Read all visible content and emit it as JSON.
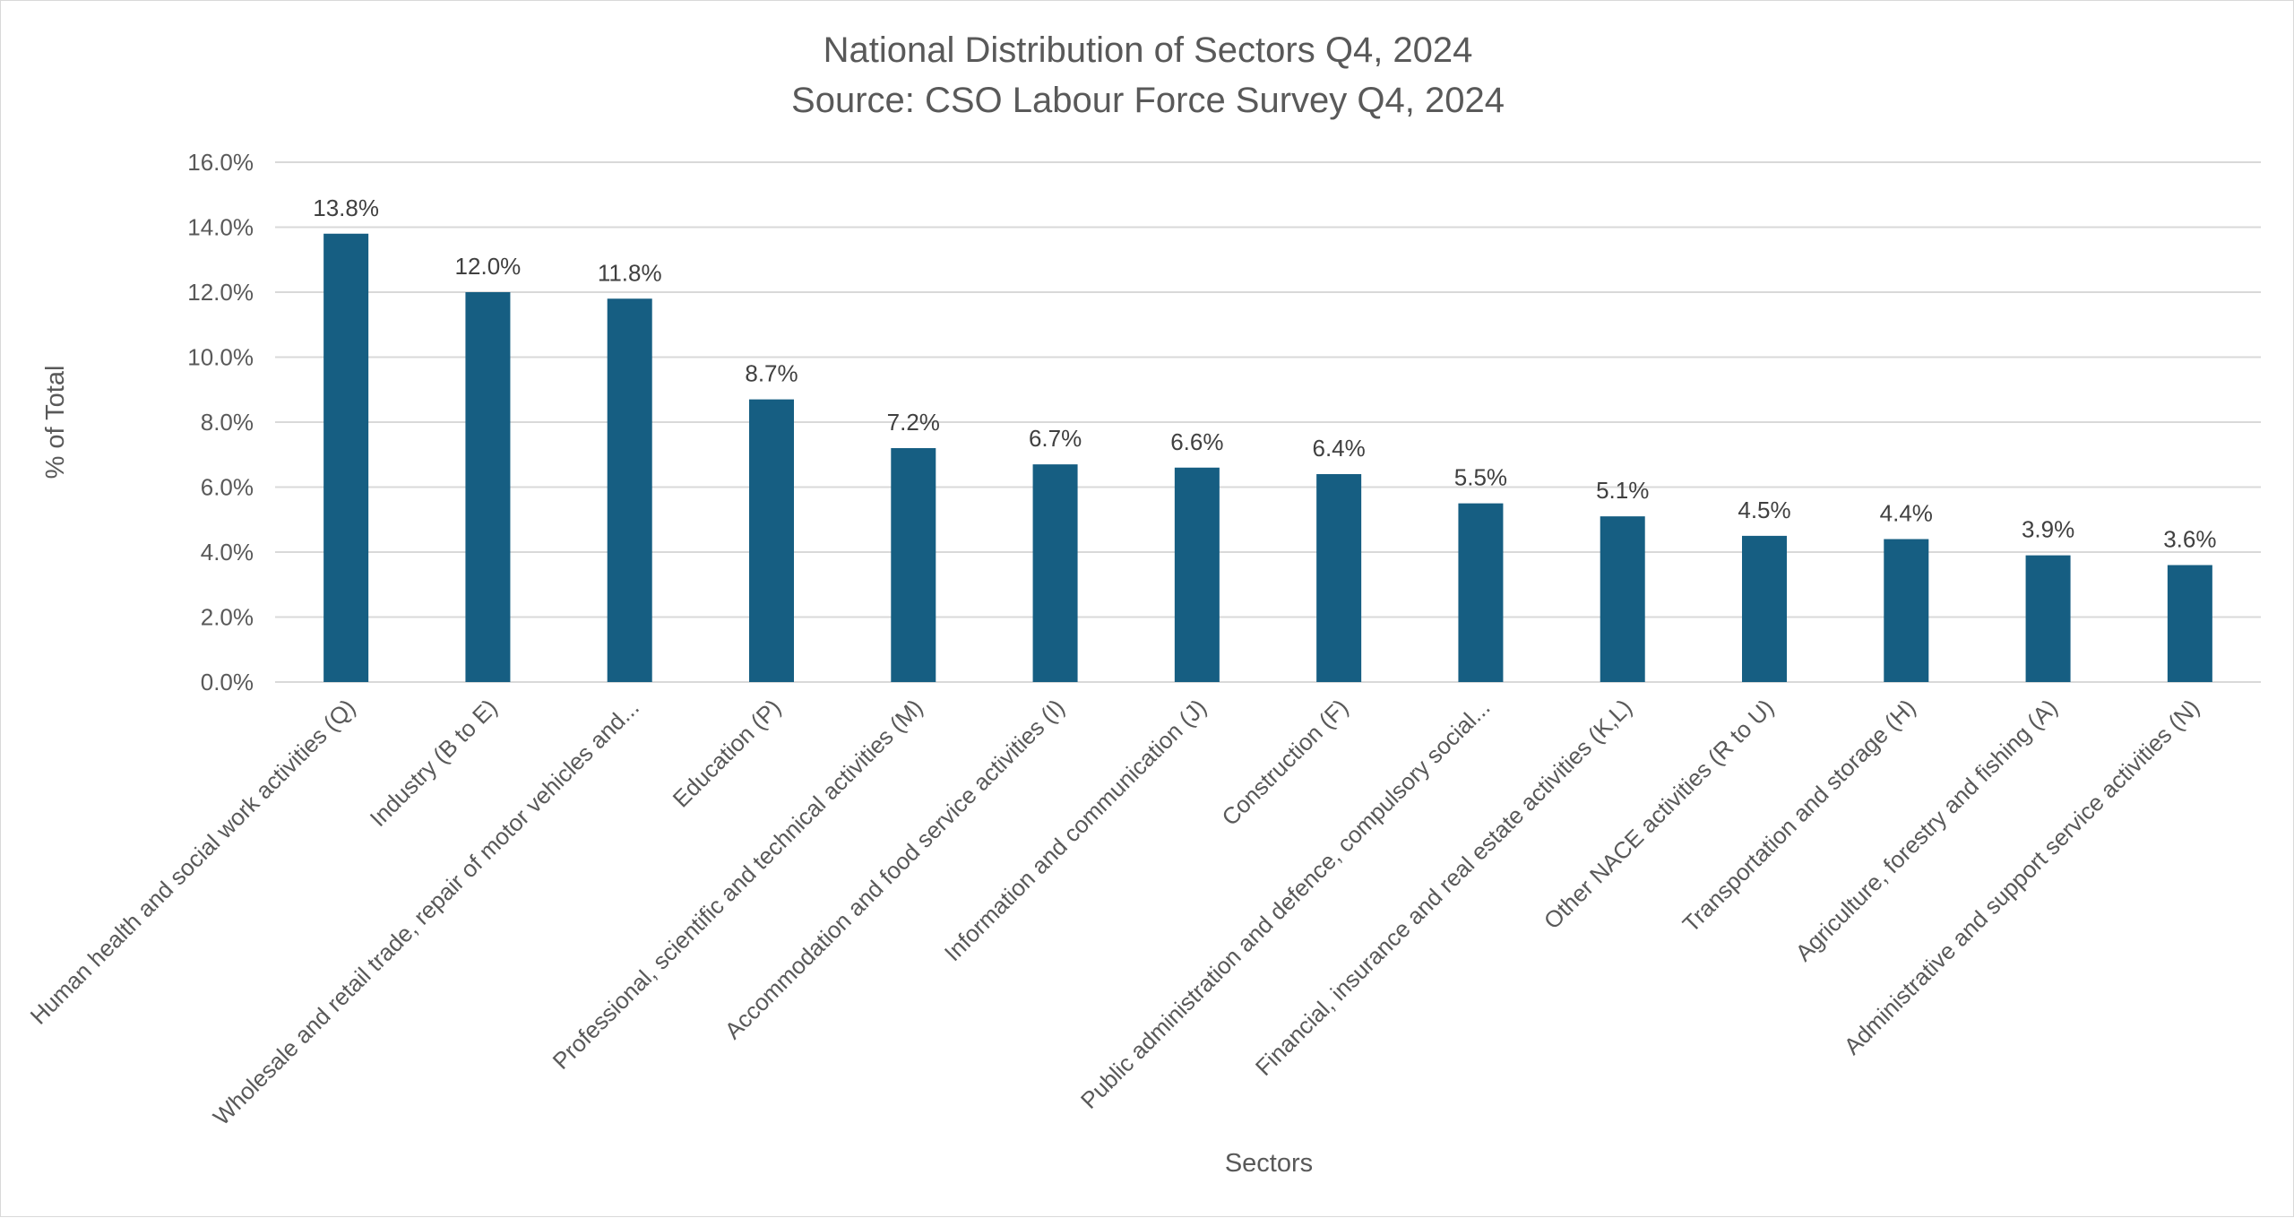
{
  "chart_data": {
    "type": "bar",
    "title": "National Distribution of Sectors Q4, 2024",
    "subtitle": "Source: CSO Labour Force Survey Q4, 2024",
    "xlabel": "Sectors",
    "ylabel": "% of Total",
    "ylim": [
      0,
      16
    ],
    "yticks": [
      "0.0%",
      "2.0%",
      "4.0%",
      "6.0%",
      "8.0%",
      "10.0%",
      "12.0%",
      "14.0%",
      "16.0%"
    ],
    "grid": true,
    "legend": "none",
    "bar_color": "#165E82",
    "categories": [
      "Human health and social work activities (Q)",
      "Industry (B to E)",
      "Wholesale and retail trade, repair of motor vehicles and...",
      "Education (P)",
      "Professional, scientific and technical activities (M)",
      "Accommodation and food service activities (I)",
      "Information and communication (J)",
      "Construction (F)",
      "Public administration and defence, compulsory social...",
      "Financial, insurance and real estate activities (K,L)",
      "Other NACE activities (R to U)",
      "Transportation and storage (H)",
      "Agriculture, forestry and fishing (A)",
      "Administrative and support service activities (N)"
    ],
    "values": [
      13.8,
      12.0,
      11.8,
      8.7,
      7.2,
      6.7,
      6.6,
      6.4,
      5.5,
      5.1,
      4.5,
      4.4,
      3.9,
      3.6
    ],
    "data_labels": [
      "13.8%",
      "12.0%",
      "11.8%",
      "8.7%",
      "7.2%",
      "6.7%",
      "6.6%",
      "6.4%",
      "5.5%",
      "5.1%",
      "4.5%",
      "4.4%",
      "3.9%",
      "3.6%"
    ]
  }
}
